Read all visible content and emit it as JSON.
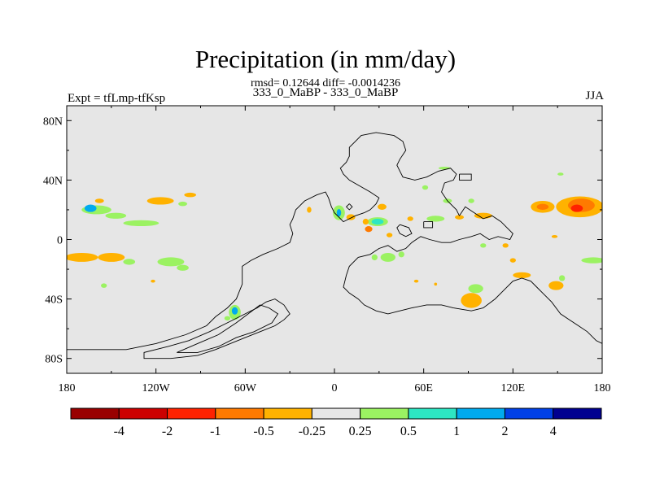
{
  "title": "Precipitation (in mm/day)",
  "stats": "rmsd= 0.12644 diff= -0.0014236",
  "subtitle": "333_0_MaBP - 333_0_MaBP",
  "left_label": "Expt = tfLmp-tfKsp",
  "right_label": "JJA",
  "map": {
    "lon_range": [
      -180,
      180
    ],
    "lat_range": [
      -90,
      90
    ],
    "background_color": "#e6e6e6",
    "x_ticks": [
      {
        "lon": -180,
        "label": "180"
      },
      {
        "lon": -120,
        "label": "120W"
      },
      {
        "lon": -60,
        "label": "60W"
      },
      {
        "lon": 0,
        "label": "0"
      },
      {
        "lon": 60,
        "label": "60E"
      },
      {
        "lon": 120,
        "label": "120E"
      },
      {
        "lon": 180,
        "label": "180"
      }
    ],
    "y_ticks": [
      {
        "lat": 80,
        "label": "80N"
      },
      {
        "lat": 40,
        "label": "40N"
      },
      {
        "lat": 0,
        "label": "0"
      },
      {
        "lat": -40,
        "label": "40S"
      },
      {
        "lat": -80,
        "label": "80S"
      }
    ],
    "coastlines": [
      [
        [
          -180,
          -74
        ],
        [
          -140,
          -74
        ],
        [
          -120,
          -70
        ],
        [
          -100,
          -64
        ],
        [
          -86,
          -58
        ],
        [
          -80,
          -52
        ],
        [
          -72,
          -46
        ],
        [
          -66,
          -40
        ],
        [
          -62,
          -30
        ],
        [
          -62,
          -18
        ],
        [
          -56,
          -14
        ],
        [
          -48,
          -10
        ],
        [
          -38,
          -6
        ],
        [
          -30,
          -2
        ],
        [
          -28,
          4
        ],
        [
          -30,
          10
        ],
        [
          -28,
          14
        ],
        [
          -26,
          20
        ],
        [
          -20,
          26
        ],
        [
          -12,
          30
        ],
        [
          -6,
          32
        ],
        [
          -4,
          28
        ],
        [
          -2,
          22
        ],
        [
          0,
          18
        ],
        [
          6,
          12
        ],
        [
          14,
          16
        ],
        [
          20,
          18
        ],
        [
          24,
          20
        ],
        [
          26,
          22
        ],
        [
          28,
          24
        ],
        [
          30,
          28
        ],
        [
          24,
          32
        ],
        [
          10,
          40
        ],
        [
          6,
          44
        ],
        [
          4,
          48
        ],
        [
          8,
          52
        ],
        [
          10,
          56
        ],
        [
          10,
          62
        ],
        [
          14,
          66
        ],
        [
          18,
          70
        ],
        [
          28,
          72
        ],
        [
          40,
          70
        ],
        [
          46,
          66
        ],
        [
          48,
          60
        ],
        [
          44,
          54
        ],
        [
          42,
          50
        ],
        [
          44,
          46
        ],
        [
          46,
          42
        ],
        [
          54,
          40
        ],
        [
          62,
          42
        ],
        [
          70,
          46
        ],
        [
          78,
          48
        ],
        [
          82,
          44
        ],
        [
          80,
          40
        ],
        [
          74,
          38
        ],
        [
          72,
          32
        ],
        [
          76,
          26
        ],
        [
          82,
          20
        ],
        [
          84,
          16
        ]
      ],
      [
        [
          84,
          16
        ],
        [
          88,
          22
        ],
        [
          94,
          18
        ],
        [
          100,
          14
        ],
        [
          106,
          16
        ],
        [
          112,
          12
        ],
        [
          116,
          8
        ],
        [
          120,
          4
        ],
        [
          118,
          0
        ],
        [
          110,
          2
        ],
        [
          104,
          0
        ],
        [
          98,
          4
        ],
        [
          92,
          2
        ],
        [
          84,
          0
        ],
        [
          78,
          -2
        ],
        [
          72,
          -2
        ],
        [
          64,
          0
        ],
        [
          58,
          2
        ],
        [
          52,
          -2
        ],
        [
          48,
          -6
        ],
        [
          42,
          -8
        ],
        [
          36,
          -4
        ],
        [
          30,
          -6
        ],
        [
          24,
          -10
        ],
        [
          16,
          -12
        ],
        [
          10,
          -18
        ],
        [
          8,
          -24
        ],
        [
          6,
          -32
        ],
        [
          10,
          -36
        ],
        [
          16,
          -40
        ],
        [
          20,
          -44
        ],
        [
          28,
          -48
        ],
        [
          36,
          -50
        ],
        [
          44,
          -48
        ],
        [
          52,
          -46
        ],
        [
          62,
          -44
        ],
        [
          72,
          -44
        ],
        [
          80,
          -46
        ],
        [
          92,
          -48
        ],
        [
          100,
          -46
        ],
        [
          108,
          -40
        ],
        [
          114,
          -34
        ],
        [
          120,
          -28
        ],
        [
          126,
          -26
        ],
        [
          132,
          -28
        ],
        [
          136,
          -32
        ],
        [
          140,
          -36
        ],
        [
          146,
          -42
        ],
        [
          152,
          -50
        ],
        [
          158,
          -54
        ],
        [
          164,
          -58
        ],
        [
          170,
          -62
        ],
        [
          176,
          -68
        ],
        [
          180,
          -70
        ]
      ],
      [
        [
          -60,
          -50
        ],
        [
          -72,
          -56
        ],
        [
          -84,
          -62
        ],
        [
          -98,
          -68
        ],
        [
          -112,
          -72
        ],
        [
          -128,
          -76
        ],
        [
          -128,
          -80
        ],
        [
          -110,
          -80
        ],
        [
          -92,
          -78
        ],
        [
          -80,
          -74
        ],
        [
          -70,
          -70
        ],
        [
          -60,
          -66
        ],
        [
          -50,
          -62
        ],
        [
          -40,
          -58
        ],
        [
          -34,
          -54
        ],
        [
          -30,
          -50
        ],
        [
          -34,
          -44
        ],
        [
          -40,
          -40
        ],
        [
          -46,
          -42
        ],
        [
          -52,
          -46
        ],
        [
          -56,
          -48
        ],
        [
          -60,
          -50
        ]
      ],
      [
        [
          -50,
          -44
        ],
        [
          -58,
          -50
        ],
        [
          -66,
          -56
        ],
        [
          -78,
          -64
        ],
        [
          -92,
          -70
        ],
        [
          -106,
          -76
        ],
        [
          -92,
          -76
        ],
        [
          -78,
          -72
        ],
        [
          -66,
          -66
        ],
        [
          -54,
          -62
        ],
        [
          -42,
          -56
        ],
        [
          -38,
          -50
        ],
        [
          -44,
          -46
        ],
        [
          -50,
          -44
        ]
      ],
      [
        [
          84,
          44
        ],
        [
          92,
          44
        ],
        [
          92,
          40
        ],
        [
          84,
          40
        ],
        [
          84,
          44
        ]
      ],
      [
        [
          60,
          12
        ],
        [
          66,
          12
        ],
        [
          66,
          8
        ],
        [
          60,
          8
        ],
        [
          60,
          12
        ]
      ],
      [
        [
          44,
          10
        ],
        [
          50,
          8
        ],
        [
          52,
          4
        ],
        [
          48,
          2
        ],
        [
          44,
          4
        ],
        [
          42,
          8
        ],
        [
          44,
          10
        ]
      ],
      [
        [
          10,
          24
        ],
        [
          12,
          22
        ],
        [
          10,
          20
        ],
        [
          8,
          22
        ],
        [
          10,
          24
        ]
      ]
    ],
    "contours": [
      {
        "lon": -160,
        "lat": 20,
        "rx": 10,
        "ry": 3,
        "color": "#9bf262"
      },
      {
        "lon": -164,
        "lat": 21,
        "rx": 4,
        "ry": 2.5,
        "color": "#00aaee"
      },
      {
        "lon": -147,
        "lat": 16,
        "rx": 7,
        "ry": 2,
        "color": "#9bf262"
      },
      {
        "lon": -130,
        "lat": 11,
        "rx": 12,
        "ry": 2,
        "color": "#9bf262"
      },
      {
        "lon": -158,
        "lat": 26,
        "rx": 3,
        "ry": 1.5,
        "color": "#ffb200"
      },
      {
        "lon": -117,
        "lat": 26,
        "rx": 9,
        "ry": 2.5,
        "color": "#ffb200"
      },
      {
        "lon": -97,
        "lat": 30,
        "rx": 4,
        "ry": 1.5,
        "color": "#ffb200"
      },
      {
        "lon": -102,
        "lat": 24,
        "rx": 3,
        "ry": 1.5,
        "color": "#9bf262"
      },
      {
        "lon": -170,
        "lat": -12,
        "rx": 11,
        "ry": 3,
        "color": "#ffb200"
      },
      {
        "lon": -150,
        "lat": -12,
        "rx": 9,
        "ry": 3,
        "color": "#ffb200"
      },
      {
        "lon": -138,
        "lat": -15,
        "rx": 4,
        "ry": 2,
        "color": "#9bf262"
      },
      {
        "lon": -110,
        "lat": -15,
        "rx": 9,
        "ry": 3,
        "color": "#9bf262"
      },
      {
        "lon": -102,
        "lat": -19,
        "rx": 4,
        "ry": 2,
        "color": "#9bf262"
      },
      {
        "lon": -155,
        "lat": -31,
        "rx": 2,
        "ry": 1.5,
        "color": "#9bf262"
      },
      {
        "lon": -122,
        "lat": -28,
        "rx": 1.5,
        "ry": 1,
        "color": "#ffb200"
      },
      {
        "lon": -67,
        "lat": -49,
        "rx": 4,
        "ry": 5,
        "color": "#9bf262"
      },
      {
        "lon": -67,
        "lat": -48,
        "rx": 2,
        "ry": 2.5,
        "color": "#00aaee"
      },
      {
        "lon": -72,
        "lat": -53,
        "rx": 2,
        "ry": 1.5,
        "color": "#9bf262"
      },
      {
        "lon": 3,
        "lat": 18,
        "rx": 4,
        "ry": 5,
        "color": "#9bf262"
      },
      {
        "lon": 3,
        "lat": 18,
        "rx": 1.5,
        "ry": 2.5,
        "color": "#00aaee"
      },
      {
        "lon": -17,
        "lat": 20,
        "rx": 1.5,
        "ry": 2,
        "color": "#ffb200"
      },
      {
        "lon": 11,
        "lat": 15,
        "rx": 3,
        "ry": 2,
        "color": "#ffb200"
      },
      {
        "lon": 29,
        "lat": 12,
        "rx": 7,
        "ry": 3,
        "color": "#9bf262"
      },
      {
        "lon": 29,
        "lat": 12,
        "rx": 4,
        "ry": 2,
        "color": "#2de6c3"
      },
      {
        "lon": 21,
        "lat": 12,
        "rx": 2,
        "ry": 2,
        "color": "#ffb200"
      },
      {
        "lon": 23,
        "lat": 7,
        "rx": 2.5,
        "ry": 2,
        "color": "#ff7a00"
      },
      {
        "lon": 32,
        "lat": 22,
        "rx": 3,
        "ry": 2,
        "color": "#ffb200"
      },
      {
        "lon": 37,
        "lat": 3,
        "rx": 2,
        "ry": 1.5,
        "color": "#ffb200"
      },
      {
        "lon": 36,
        "lat": -12,
        "rx": 5,
        "ry": 3,
        "color": "#9bf262"
      },
      {
        "lon": 27,
        "lat": -12,
        "rx": 2,
        "ry": 2,
        "color": "#9bf262"
      },
      {
        "lon": 45,
        "lat": -10,
        "rx": 2,
        "ry": 2,
        "color": "#9bf262"
      },
      {
        "lon": 68,
        "lat": 14,
        "rx": 6,
        "ry": 2,
        "color": "#9bf262"
      },
      {
        "lon": 51,
        "lat": 14,
        "rx": 2,
        "ry": 1.5,
        "color": "#ffb200"
      },
      {
        "lon": 84,
        "lat": 15,
        "rx": 3,
        "ry": 1.5,
        "color": "#ffb200"
      },
      {
        "lon": 100,
        "lat": 16,
        "rx": 6,
        "ry": 2,
        "color": "#ffb200"
      },
      {
        "lon": 76,
        "lat": 26,
        "rx": 3,
        "ry": 1.5,
        "color": "#9bf262"
      },
      {
        "lon": 92,
        "lat": 26,
        "rx": 2,
        "ry": 1.5,
        "color": "#9bf262"
      },
      {
        "lon": 61,
        "lat": 35,
        "rx": 2,
        "ry": 1.5,
        "color": "#9bf262"
      },
      {
        "lon": 74,
        "lat": 48,
        "rx": 4,
        "ry": 1,
        "color": "#9bf262"
      },
      {
        "lon": 140,
        "lat": 22,
        "rx": 8,
        "ry": 4,
        "color": "#ffb200"
      },
      {
        "lon": 140,
        "lat": 22,
        "rx": 4,
        "ry": 2,
        "color": "#ff7a00"
      },
      {
        "lon": 165,
        "lat": 22,
        "rx": 16,
        "ry": 7,
        "color": "#ffb200"
      },
      {
        "lon": 166,
        "lat": 23,
        "rx": 9,
        "ry": 4.5,
        "color": "#ff7a00"
      },
      {
        "lon": 163,
        "lat": 21,
        "rx": 4,
        "ry": 2.5,
        "color": "#ff2200"
      },
      {
        "lon": 152,
        "lat": 44,
        "rx": 2,
        "ry": 1,
        "color": "#9bf262"
      },
      {
        "lon": 174,
        "lat": -14,
        "rx": 8,
        "ry": 2,
        "color": "#9bf262"
      },
      {
        "lon": 148,
        "lat": 2,
        "rx": 2,
        "ry": 1,
        "color": "#ffb200"
      },
      {
        "lon": 115,
        "lat": -4,
        "rx": 2,
        "ry": 1.5,
        "color": "#ffb200"
      },
      {
        "lon": 120,
        "lat": -14,
        "rx": 2,
        "ry": 1.5,
        "color": "#ffb200"
      },
      {
        "lon": 100,
        "lat": -4,
        "rx": 2,
        "ry": 1.5,
        "color": "#9bf262"
      },
      {
        "lon": 95,
        "lat": -33,
        "rx": 5,
        "ry": 3,
        "color": "#9bf262"
      },
      {
        "lon": 92,
        "lat": -41,
        "rx": 7,
        "ry": 5,
        "color": "#ffb200"
      },
      {
        "lon": 126,
        "lat": -24,
        "rx": 6,
        "ry": 2,
        "color": "#ffb200"
      },
      {
        "lon": 149,
        "lat": -31,
        "rx": 5,
        "ry": 3,
        "color": "#ffb200"
      },
      {
        "lon": 153,
        "lat": -26,
        "rx": 2,
        "ry": 2,
        "color": "#9bf262"
      },
      {
        "lon": 68,
        "lat": -30,
        "rx": 1,
        "ry": 1,
        "color": "#ffb200"
      },
      {
        "lon": 55,
        "lat": -28,
        "rx": 1.5,
        "ry": 1,
        "color": "#ffb200"
      }
    ]
  },
  "colorbar": {
    "colors": [
      "#990000",
      "#cc0000",
      "#ff2200",
      "#ff7a00",
      "#ffb200",
      "#e6e6e6",
      "#9bf262",
      "#2de6c3",
      "#00aaee",
      "#0040e6",
      "#000090"
    ],
    "labels": [
      "-4",
      "-2",
      "-1",
      "-0.5",
      "-0.25",
      "0.25",
      "0.5",
      "1",
      "2",
      "4"
    ]
  }
}
